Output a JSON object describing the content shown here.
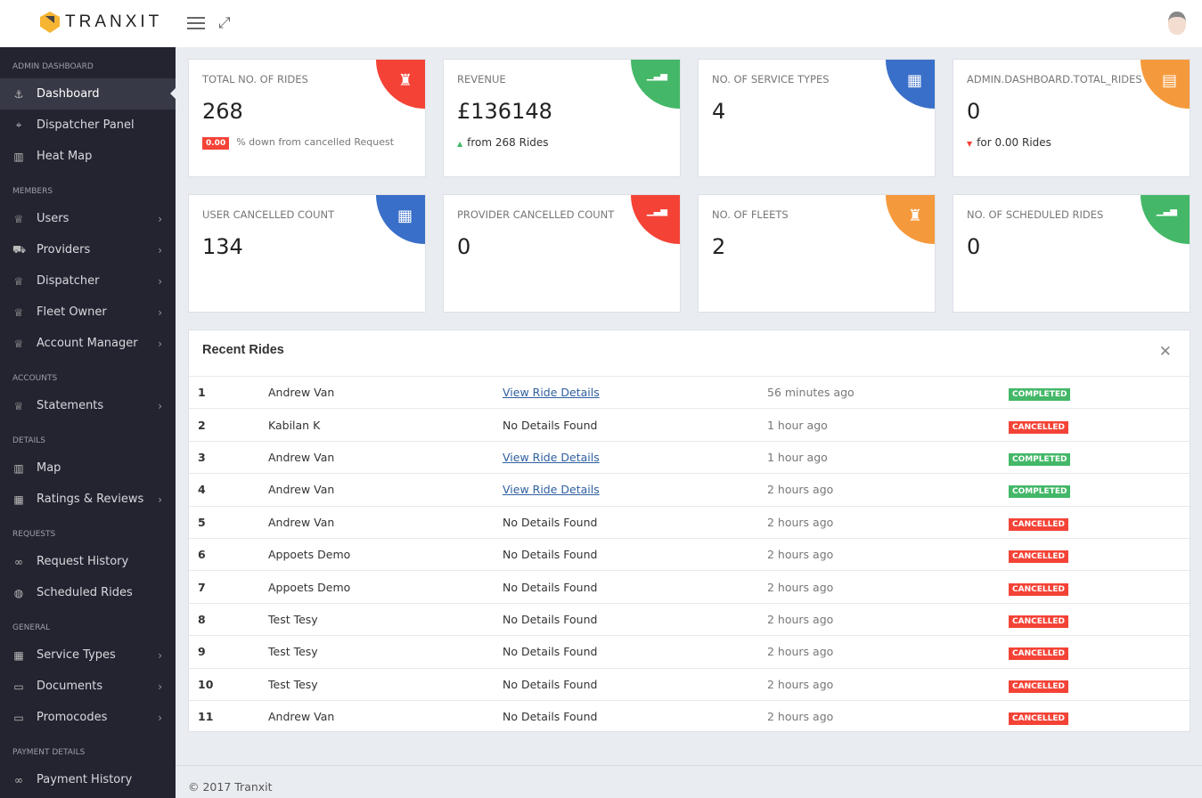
{
  "header": {
    "brand": "TRANXIT",
    "menu_icon": "hamburger-icon",
    "expand_icon": "expand-icon"
  },
  "sidebar": [
    {
      "section": "ADMIN DASHBOARD",
      "items": [
        {
          "label": "Dashboard",
          "icon": "⚓",
          "active": true
        },
        {
          "label": "Dispatcher Panel",
          "icon": "⌖"
        },
        {
          "label": "Heat Map",
          "icon": "▥"
        }
      ]
    },
    {
      "section": "MEMBERS",
      "items": [
        {
          "label": "Users",
          "icon": "♕",
          "chev": true
        },
        {
          "label": "Providers",
          "icon": "⛟",
          "chev": true
        },
        {
          "label": "Dispatcher",
          "icon": "♕",
          "chev": true
        },
        {
          "label": "Fleet Owner",
          "icon": "♕",
          "chev": true
        },
        {
          "label": "Account Manager",
          "icon": "♕",
          "chev": true
        }
      ]
    },
    {
      "section": "ACCOUNTS",
      "items": [
        {
          "label": "Statements",
          "icon": "♕",
          "chev": true
        }
      ]
    },
    {
      "section": "DETAILS",
      "items": [
        {
          "label": "Map",
          "icon": "▥"
        },
        {
          "label": "Ratings & Reviews",
          "icon": "▦",
          "chev": true
        }
      ]
    },
    {
      "section": "REQUESTS",
      "items": [
        {
          "label": "Request History",
          "icon": "∞"
        },
        {
          "label": "Scheduled Rides",
          "icon": "◍"
        }
      ]
    },
    {
      "section": "GENERAL",
      "items": [
        {
          "label": "Service Types",
          "icon": "▦",
          "chev": true
        },
        {
          "label": "Documents",
          "icon": "▭",
          "chev": true
        },
        {
          "label": "Promocodes",
          "icon": "▭",
          "chev": true
        }
      ]
    },
    {
      "section": "PAYMENT DETAILS",
      "items": [
        {
          "label": "Payment History",
          "icon": "∞"
        }
      ]
    }
  ],
  "cards": [
    {
      "label": "TOTAL NO. OF RIDES",
      "value": "268",
      "badge": "0.00",
      "sub": "% down from cancelled Request",
      "color": "#f44336",
      "icon": "rocket-icon"
    },
    {
      "label": "REVENUE",
      "value": "£136148",
      "sub": "from 268 Rides",
      "trend": "up",
      "color": "#44b868",
      "icon": "bar-chart-icon"
    },
    {
      "label": "NO. OF SERVICE TYPES",
      "value": "4",
      "color": "#3a6fc9",
      "icon": "grid-icon"
    },
    {
      "label": "ADMIN.DASHBOARD.TOTAL_RIDES",
      "value": "0",
      "sub": "for 0.00 Rides",
      "trend": "down",
      "color": "#f59a3c",
      "icon": "archive-icon"
    },
    {
      "label": "USER CANCELLED COUNT",
      "value": "134",
      "color": "#3a6fc9",
      "icon": "grid-icon"
    },
    {
      "label": "PROVIDER CANCELLED COUNT",
      "value": "0",
      "color": "#f44336",
      "icon": "bar-chart-icon"
    },
    {
      "label": "NO. OF FLEETS",
      "value": "2",
      "color": "#f59a3c",
      "icon": "rocket-icon"
    },
    {
      "label": "NO. OF SCHEDULED RIDES",
      "value": "0",
      "color": "#44b868",
      "icon": "bar-chart-icon"
    }
  ],
  "recent": {
    "title": "Recent Rides",
    "rows": [
      {
        "n": "1",
        "name": "Andrew Van",
        "details": "View Ride Details",
        "link": true,
        "time": "56 minutes ago",
        "status": "COMPLETED"
      },
      {
        "n": "2",
        "name": "Kabilan K",
        "details": "No Details Found",
        "time": "1 hour ago",
        "status": "CANCELLED"
      },
      {
        "n": "3",
        "name": "Andrew Van",
        "details": "View Ride Details",
        "link": true,
        "time": "1 hour ago",
        "status": "COMPLETED"
      },
      {
        "n": "4",
        "name": "Andrew Van",
        "details": "View Ride Details",
        "link": true,
        "time": "2 hours ago",
        "status": "COMPLETED"
      },
      {
        "n": "5",
        "name": "Andrew Van",
        "details": "No Details Found",
        "time": "2 hours ago",
        "status": "CANCELLED"
      },
      {
        "n": "6",
        "name": "Appoets Demo",
        "details": "No Details Found",
        "time": "2 hours ago",
        "status": "CANCELLED"
      },
      {
        "n": "7",
        "name": "Appoets Demo",
        "details": "No Details Found",
        "time": "2 hours ago",
        "status": "CANCELLED"
      },
      {
        "n": "8",
        "name": "Test Tesy",
        "details": "No Details Found",
        "time": "2 hours ago",
        "status": "CANCELLED"
      },
      {
        "n": "9",
        "name": "Test Tesy",
        "details": "No Details Found",
        "time": "2 hours ago",
        "status": "CANCELLED"
      },
      {
        "n": "10",
        "name": "Test Tesy",
        "details": "No Details Found",
        "time": "2 hours ago",
        "status": "CANCELLED"
      },
      {
        "n": "11",
        "name": "Andrew Van",
        "details": "No Details Found",
        "time": "2 hours ago",
        "status": "CANCELLED"
      }
    ]
  },
  "status_colors": {
    "COMPLETED": "#44b868",
    "CANCELLED": "#f44336"
  },
  "footer": "© 2017 Tranxit"
}
